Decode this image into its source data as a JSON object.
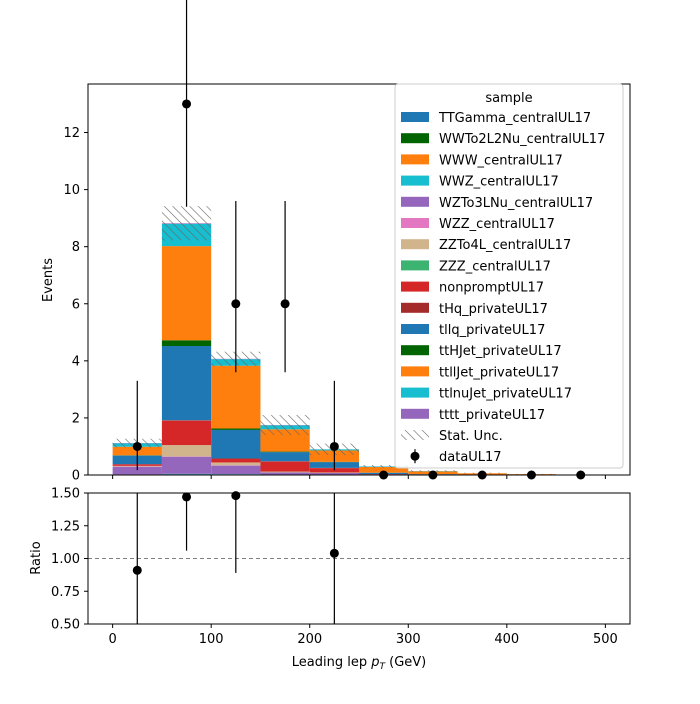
{
  "chart_data": [
    {
      "type": "bar",
      "stacked": true,
      "ylabel": "Events",
      "xlim": [
        -25,
        525
      ],
      "ylim": [
        0,
        13.7
      ],
      "x_ticks": [
        0,
        100,
        200,
        300,
        400,
        500
      ],
      "y_ticks": [
        0,
        2,
        4,
        6,
        8,
        10,
        12
      ],
      "bin_edges": [
        0,
        50,
        100,
        150,
        200,
        250,
        300,
        350,
        400,
        450,
        500
      ],
      "legend_title": "sample",
      "legend_position": "top-right",
      "series": [
        {
          "name": "TTGamma_centralUL17",
          "color": "#1f77b4",
          "values": [
            0.01,
            0.03,
            0.02,
            0.01,
            0.01,
            0.0,
            0.0,
            0.0,
            0.0,
            0.0
          ]
        },
        {
          "name": "WWTo2L2Nu_centralUL17",
          "color": "#006400",
          "values": [
            0.0,
            0.0,
            0.0,
            0.0,
            0.0,
            0.0,
            0.0,
            0.0,
            0.0,
            0.0
          ]
        },
        {
          "name": "WWW_centralUL17",
          "color": "#ff7f0e",
          "values": [
            0.0,
            0.0,
            0.0,
            0.0,
            0.0,
            0.0,
            0.0,
            0.0,
            0.0,
            0.0
          ]
        },
        {
          "name": "WWZ_centralUL17",
          "color": "#17becf",
          "values": [
            0.01,
            0.01,
            0.01,
            0.0,
            0.0,
            0.0,
            0.0,
            0.0,
            0.0,
            0.0
          ]
        },
        {
          "name": "WZTo3LNu_centralUL17",
          "color": "#9467bd",
          "values": [
            0.27,
            0.6,
            0.3,
            0.08,
            0.06,
            0.0,
            0.0,
            0.0,
            0.0,
            0.0
          ]
        },
        {
          "name": "WZZ_centralUL17",
          "color": "#e377c2",
          "values": [
            0.01,
            0.01,
            0.01,
            0.0,
            0.0,
            0.0,
            0.0,
            0.0,
            0.0,
            0.0
          ]
        },
        {
          "name": "ZZTo4L_centralUL17",
          "color": "#d2b48c",
          "values": [
            0.02,
            0.4,
            0.1,
            0.03,
            0.02,
            0.0,
            0.0,
            0.0,
            0.0,
            0.0
          ]
        },
        {
          "name": "ZZZ_centralUL17",
          "color": "#3cb371",
          "values": [
            0.0,
            0.0,
            0.0,
            0.0,
            0.0,
            0.0,
            0.0,
            0.0,
            0.0,
            0.0
          ]
        },
        {
          "name": "nonpromptUL17",
          "color": "#d62728",
          "values": [
            0.05,
            0.85,
            0.12,
            0.35,
            0.15,
            0.03,
            0.01,
            0.0,
            0.0,
            0.0
          ]
        },
        {
          "name": "tHq_privateUL17",
          "color": "#a52a2a",
          "values": [
            0.01,
            0.02,
            0.02,
            0.01,
            0.01,
            0.0,
            0.0,
            0.0,
            0.0,
            0.0
          ]
        },
        {
          "name": "tllq_privateUL17",
          "color": "#1f77b4",
          "values": [
            0.3,
            2.6,
            1.0,
            0.32,
            0.2,
            0.05,
            0.02,
            0.01,
            0.0,
            0.0
          ]
        },
        {
          "name": "ttHJet_privateUL17",
          "color": "#006400",
          "values": [
            0.01,
            0.2,
            0.05,
            0.02,
            0.01,
            0.0,
            0.0,
            0.0,
            0.0,
            0.0
          ]
        },
        {
          "name": "ttllJet_privateUL17",
          "color": "#ff7f0e",
          "values": [
            0.3,
            3.3,
            2.2,
            0.78,
            0.4,
            0.2,
            0.1,
            0.05,
            0.03,
            0.01
          ]
        },
        {
          "name": "ttlnuJet_privateUL17",
          "color": "#17becf",
          "values": [
            0.12,
            0.78,
            0.23,
            0.14,
            0.04,
            0.02,
            0.01,
            0.0,
            0.0,
            0.0
          ]
        },
        {
          "name": "tttt_privateUL17",
          "color": "#9467bd",
          "values": [
            0.01,
            0.02,
            0.01,
            0.01,
            0.0,
            0.0,
            0.0,
            0.0,
            0.0,
            0.0
          ]
        }
      ],
      "stat_unc": {
        "name": "Stat. Unc.",
        "values": [
          0.15,
          0.6,
          0.25,
          0.35,
          0.2,
          0.05,
          0.03,
          0.02,
          0.01,
          0.01
        ]
      },
      "data": {
        "name": "dataUL17",
        "x": [
          25,
          75,
          125,
          175,
          225,
          275,
          325,
          375,
          425,
          475
        ],
        "y": [
          1,
          13,
          6,
          6,
          1,
          0,
          0,
          0,
          0,
          0
        ],
        "err_low": [
          0.83,
          3.6,
          2.4,
          2.4,
          0.83,
          0,
          0,
          0,
          0,
          0
        ],
        "err_high": [
          2.3,
          4.7,
          3.6,
          3.6,
          2.3,
          0,
          0,
          0,
          0,
          0
        ]
      }
    },
    {
      "type": "scatter",
      "ylabel": "Ratio",
      "xlabel_prefix": "Leading lep ",
      "xlabel_var": "p",
      "xlabel_sub": "T",
      "xlabel_suffix": " (GeV)",
      "xlim": [
        -25,
        525
      ],
      "ylim": [
        0.5,
        1.5
      ],
      "x_ticks": [
        0,
        100,
        200,
        300,
        400,
        500
      ],
      "y_ticks": [
        "0.50",
        "0.75",
        "1.00",
        "1.25",
        "1.50"
      ],
      "reference_line": 1.0,
      "x": [
        25,
        75,
        125,
        225
      ],
      "y": [
        0.91,
        1.47,
        1.48,
        1.04
      ],
      "err_low": [
        0.76,
        0.41,
        0.59,
        0.86
      ],
      "err_high": [
        2.1,
        0.55,
        0.9,
        2.4
      ]
    }
  ]
}
